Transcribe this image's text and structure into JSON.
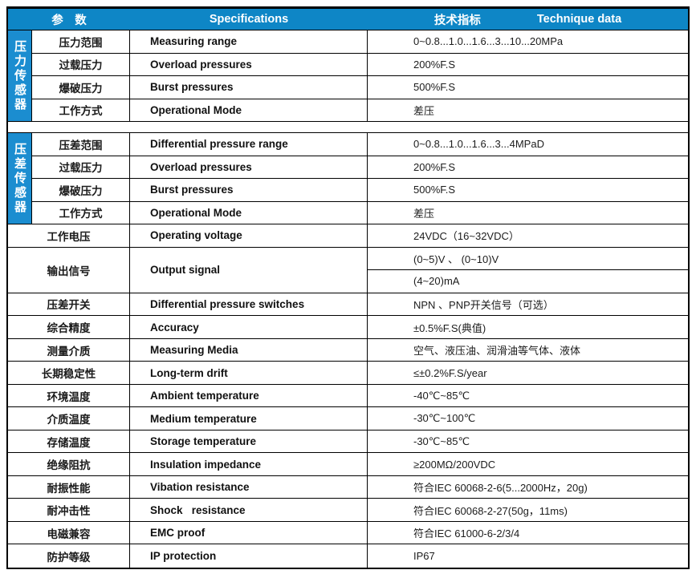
{
  "colors": {
    "header_bg": "#0e86c6",
    "sidebar_bg": "#1b8dd0",
    "border": "#000000",
    "header_text": "#ffffff"
  },
  "header": {
    "param": "参　数",
    "spec": "Specifications",
    "value_zh": "技术指标",
    "value_en": "Technique data"
  },
  "sections": [
    {
      "label": "压力传感器",
      "rows": [
        {
          "zh": "压力范围",
          "en": "Measuring range",
          "val": "0~0.8...1.0...1.6...3...10...20MPa"
        },
        {
          "zh": "过载压力",
          "en": "Overload pressures",
          "val": "200%F.S"
        },
        {
          "zh": "爆破压力",
          "en": "Burst pressures",
          "val": "500%F.S"
        },
        {
          "zh": "工作方式",
          "en": "Operational Mode",
          "val": "差压"
        }
      ]
    },
    {
      "label": "压差传感器",
      "rows": [
        {
          "zh": "压差范围",
          "en": "Differential pressure range",
          "val": "0~0.8...1.0...1.6...3...4MPaD"
        },
        {
          "zh": "过载压力",
          "en": "Overload pressures",
          "val": "200%F.S"
        },
        {
          "zh": "爆破压力",
          "en": "Burst pressures",
          "val": "500%F.S"
        },
        {
          "zh": "工作方式",
          "en": "Operational Mode",
          "val": "差压"
        }
      ]
    }
  ],
  "common_rows": [
    {
      "zh": "工作电压",
      "en": "Operating voltage",
      "val": "24VDC（16~32VDC）"
    },
    {
      "zh": "输出信号",
      "en": "Output signal",
      "vals": [
        "(0~5)V 、 (0~10)V",
        "(4~20)mA"
      ]
    },
    {
      "zh": "压差开关",
      "en": "Differential pressure switches",
      "val": "NPN 、PNP开关信号（可选）"
    },
    {
      "zh": "综合精度",
      "en": "Accuracy",
      "val": "±0.5%F.S(典值)"
    },
    {
      "zh": "测量介质",
      "en": "Measuring Media",
      "val": "空气、液压油、润滑油等气体、液体"
    },
    {
      "zh": "长期稳定性",
      "en": "Long-term drift",
      "val": "≤±0.2%F.S/year"
    },
    {
      "zh": "环境温度",
      "en": "Ambient temperature",
      "val": "-40℃~85℃"
    },
    {
      "zh": "介质温度",
      "en": "Medium temperature",
      "val": "-30℃~100℃"
    },
    {
      "zh": "存储温度",
      "en": "Storage temperature",
      "val": "-30℃~85℃"
    },
    {
      "zh": "绝缘阻抗",
      "en": "Insulation impedance",
      "val": "≥200MΩ/200VDC"
    },
    {
      "zh": "耐振性能",
      "en": "Vibation resistance",
      "val": "符合IEC 60068-2-6(5...2000Hz，20g)"
    },
    {
      "zh": "耐冲击性",
      "en": "Shock   resistance",
      "val": "符合IEC 60068-2-27(50g，11ms)"
    },
    {
      "zh": "电磁兼容",
      "en": "EMC proof",
      "val": "符合IEC 61000-6-2/3/4"
    },
    {
      "zh": "防护等级",
      "en": "IP protection",
      "val": "IP67"
    }
  ]
}
